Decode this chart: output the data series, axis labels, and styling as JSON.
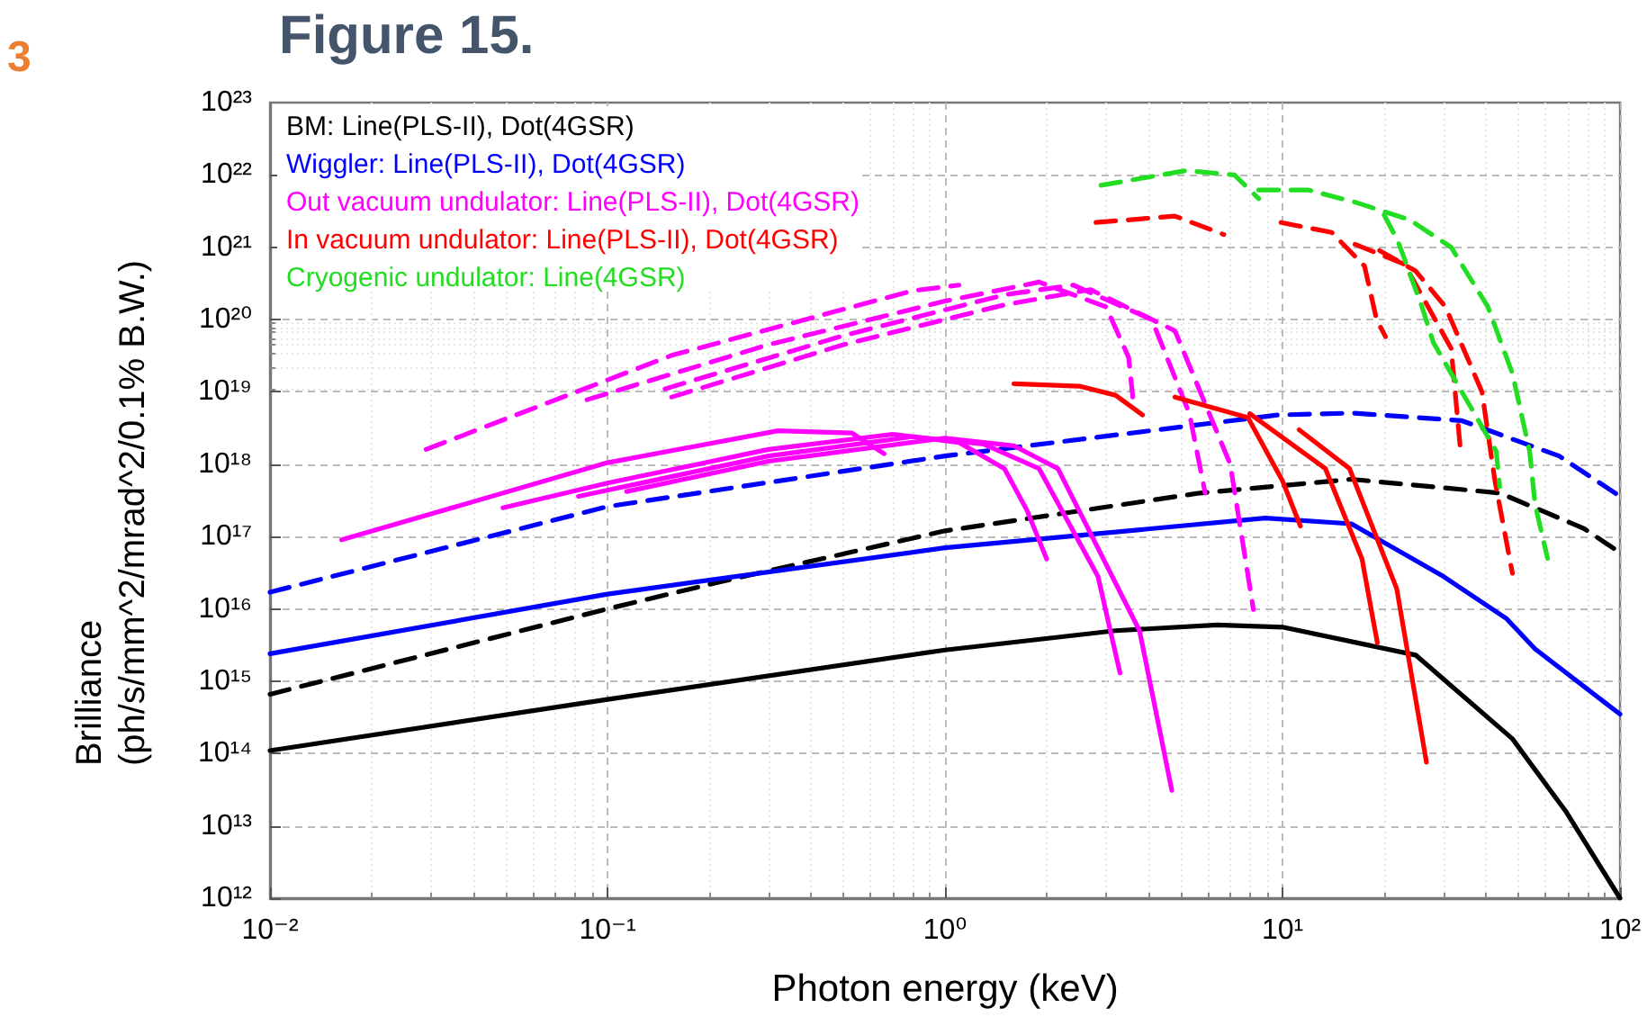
{
  "chart_data": {
    "type": "line",
    "title": "Figure 15.",
    "xlabel": "Photon energy (keV)",
    "ylabel": "Brilliance\n(ph/s/mm^2/mrad^2/0.1% B.W.)",
    "annotations": [
      "3"
    ],
    "log": "xy",
    "grid": true,
    "legend": "top left",
    "marker": "none",
    "xlim": [
      0.01,
      100
    ],
    "xticks": [
      {
        "value": 0.01,
        "label": "10⁻²"
      },
      {
        "value": 0.1,
        "label": "10⁻¹"
      },
      {
        "value": 1,
        "label": "10⁰"
      },
      {
        "value": 10,
        "label": "10¹"
      },
      {
        "value": 100,
        "label": "10²"
      }
    ],
    "ylim": [
      1000000000000.0,
      1e+23
    ],
    "yticks": [
      {
        "value": 1000000000000.0,
        "label": "10¹²"
      },
      {
        "value": 10000000000000.0,
        "label": "10¹³"
      },
      {
        "value": 100000000000000.0,
        "label": "10¹⁴"
      },
      {
        "value": 1000000000000000.0,
        "label": "10¹⁵"
      },
      {
        "value": 1e+16,
        "label": "10¹⁶"
      },
      {
        "value": 1e+17,
        "label": "10¹⁷"
      },
      {
        "value": 1e+18,
        "label": "10¹⁸"
      },
      {
        "value": 1e+19,
        "label": "10¹⁹"
      },
      {
        "value": 1e+20,
        "label": "10²⁰"
      },
      {
        "value": 1e+21,
        "label": "10²¹"
      },
      {
        "value": 1e+22,
        "label": "10²²"
      },
      {
        "value": 1e+23,
        "label": "10²³"
      }
    ],
    "series": [
      {
        "name": "BM: Line(PLS-II), Dot(4GSR)",
        "color": "#000000",
        "line_style": "solid",
        "x": [
          0.01,
          0.1,
          1,
          3.2,
          6.4,
          10,
          24.8,
          48,
          56,
          69,
          100
        ],
        "values": [
          110000000000000.0,
          560000000000000.0,
          2700000000000000.0,
          5000000000000000.0,
          6000000000000000.0,
          5600000000000000.0,
          2300000000000000.0,
          160000000000000.0,
          60000000000000.0,
          16000000000000.0,
          1000000000000.0
        ]
      },
      {
        "color": "#000000",
        "line_style": "dashed",
        "x": [
          0.01,
          0.1,
          0.21,
          1,
          5.7,
          16,
          44,
          78,
          100
        ],
        "values": [
          660000000000000.0,
          1e+16,
          2.3e+16,
          1.2e+17,
          4e+17,
          6.2e+17,
          4e+17,
          1.3e+17,
          6e+16
        ]
      },
      {
        "name": "Wiggler: Line(PLS-II), Dot(4GSR)",
        "color": "#0000ff",
        "line_style": "solid",
        "x": [
          0.01,
          0.1,
          1,
          8.9,
          16,
          30,
          46,
          56,
          100
        ],
        "values": [
          2400000000000000.0,
          1.6e+16,
          7e+16,
          1.8e+17,
          1.5e+17,
          2.8e+16,
          7400000000000000.0,
          2800000000000000.0,
          350000000000000.0
        ]
      },
      {
        "color": "#0000ff",
        "line_style": "dashed",
        "x": [
          0.01,
          0.1,
          1,
          9.7,
          16,
          34,
          66,
          100
        ],
        "values": [
          1.7e+16,
          2.6e+17,
          1.3e+18,
          4.8e+18,
          5.1e+18,
          4e+18,
          1.3e+18,
          3.6e+17
        ]
      },
      {
        "name": "Out vacuum undulator: Line(PLS-II), Dot(4GSR)",
        "color": "#ff00ff",
        "line_style": "solid",
        "x": [
          0.0163,
          0.1,
          0.32,
          0.53,
          0.66
        ],
        "values": [
          9e+16,
          1.05e+18,
          2.9e+18,
          2.7e+18,
          1.4e+18
        ]
      },
      {
        "color": "#ff00ff",
        "line_style": "solid",
        "x": [
          0.049,
          0.1,
          0.3,
          0.7,
          1.1,
          1.5,
          1.75,
          2.0
        ],
        "values": [
          2.5e+17,
          5.5e+17,
          1.6e+18,
          2.6e+18,
          2e+18,
          8.7e+17,
          2.3e+17,
          4.9e+16
        ]
      },
      {
        "color": "#ff00ff",
        "line_style": "solid",
        "x": [
          0.082,
          0.3,
          0.8,
          1.3,
          1.9,
          2.84,
          3.3
        ],
        "values": [
          3.6e+17,
          1.3e+18,
          2.4e+18,
          1.9e+18,
          8.7e+17,
          2.8e+16,
          1300000000000000.0
        ]
      },
      {
        "color": "#ff00ff",
        "line_style": "solid",
        "x": [
          0.114,
          0.3,
          1.0,
          1.6,
          2.16,
          3.77,
          4.7
        ],
        "values": [
          4.2e+17,
          1.1e+18,
          2.3e+18,
          1.8e+18,
          8.7e+17,
          5000000000000000.0,
          31000000000000.0
        ]
      },
      {
        "color": "#ff00ff",
        "line_style": "dashed",
        "x": [
          0.029,
          0.155,
          0.8,
          1.1
        ],
        "values": [
          1.6e+18,
          3.2e+19,
          2.5e+20,
          3e+20
        ]
      },
      {
        "color": "#ff00ff",
        "line_style": "dashed",
        "x": [
          0.087,
          0.3,
          1.0,
          1.9,
          3.0,
          3.5,
          3.6
        ],
        "values": [
          7.8e+18,
          4.5e+19,
          1.8e+20,
          3.3e+20,
          1.5e+20,
          3e+19,
          8.5e+18
        ]
      },
      {
        "color": "#ff00ff",
        "line_style": "dashed",
        "x": [
          0.148,
          0.5,
          1.5,
          2.4,
          4.1,
          5.3,
          5.9
        ],
        "values": [
          1.1e+19,
          6e+19,
          2.2e+20,
          3e+20,
          1e+20,
          5e+18,
          4e+17
        ]
      },
      {
        "color": "#ff00ff",
        "line_style": "dashed",
        "x": [
          0.155,
          0.5,
          1.5,
          2.7,
          4.8,
          7.0,
          8.2
        ],
        "values": [
          8.5e+18,
          4.5e+19,
          1.6e+20,
          2.6e+20,
          7e+19,
          1e+18,
          9800000000000000.0
        ]
      },
      {
        "name": "In vacuum undulator: Line(PLS-II), Dot(4GSR)",
        "color": "#ff0000",
        "line_style": "solid",
        "x": [
          1.6,
          2.5,
          3.2,
          3.85
        ],
        "values": [
          1.3e+19,
          1.2e+19,
          9e+18,
          4.8e+18
        ]
      },
      {
        "color": "#ff0000",
        "line_style": "solid",
        "x": [
          4.8,
          7.9,
          10,
          11.3
        ],
        "values": [
          8.5e+18,
          4.4e+18,
          5.9e+17,
          1.4e+17
        ]
      },
      {
        "color": "#ff0000",
        "line_style": "solid",
        "x": [
          8.0,
          13.4,
          17.2,
          19.1
        ],
        "values": [
          5e+18,
          8.7e+17,
          4.9e+16,
          3400000000000000.0
        ]
      },
      {
        "color": "#ff0000",
        "line_style": "solid",
        "x": [
          11.2,
          15.8,
          21.8,
          26.7
        ],
        "values": [
          3e+18,
          8.7e+17,
          1.9e+16,
          76000000000000.0
        ]
      },
      {
        "color": "#ff0000",
        "line_style": "dashed",
        "x": [
          2.8,
          4.8,
          6.7
        ],
        "values": [
          2.2e+21,
          2.7e+21,
          1.5e+21
        ]
      },
      {
        "color": "#ff0000",
        "line_style": "dashed",
        "x": [
          9.9,
          14,
          17.5,
          19,
          20.2
        ],
        "values": [
          2.2e+21,
          1.6e+21,
          5.5e+20,
          1e+20,
          5.8e+19
        ]
      },
      {
        "color": "#ff0000",
        "line_style": "dashed",
        "x": [
          16.4,
          23,
          31.6,
          33.7
        ],
        "values": [
          1.1e+21,
          5.8e+20,
          4e+19,
          1.5e+18
        ]
      },
      {
        "color": "#ff0000",
        "line_style": "dashed",
        "x": [
          19.4,
          24.8,
          30.4,
          39,
          42.6,
          48
        ],
        "values": [
          9e+20,
          4.7e+20,
          1.5e+20,
          1e+19,
          5.9e+17,
          3.1e+16
        ]
      },
      {
        "name": "Cryogenic undulator: Line(4GSR)",
        "color": "#22dd22",
        "line_style": "dashed",
        "x": [
          2.9,
          5.2,
          7.2,
          8.5
        ],
        "values": [
          7.2e+21,
          1.15e+22,
          1e+22,
          4.7e+21
        ]
      },
      {
        "color": "#22dd22",
        "line_style": "dashed",
        "x": [
          8.5,
          11.9,
          16.4,
          23.8,
          31.6,
          40.6,
          48,
          54,
          56,
          61
        ],
        "values": [
          6.2e+21,
          6.2e+21,
          4.2e+21,
          2.4e+21,
          1e+21,
          1.5e+20,
          1.8e+19,
          1.5e+18,
          2.8e+17,
          5e+16
        ]
      },
      {
        "color": "#22dd22",
        "line_style": "dashed",
        "x": [
          20,
          22,
          25.9,
          28,
          43,
          44
        ],
        "values": [
          2.8e+21,
          1.2e+21,
          1.5e+20,
          4.8e+19,
          1.5e+18,
          4.9e+17
        ]
      }
    ]
  }
}
